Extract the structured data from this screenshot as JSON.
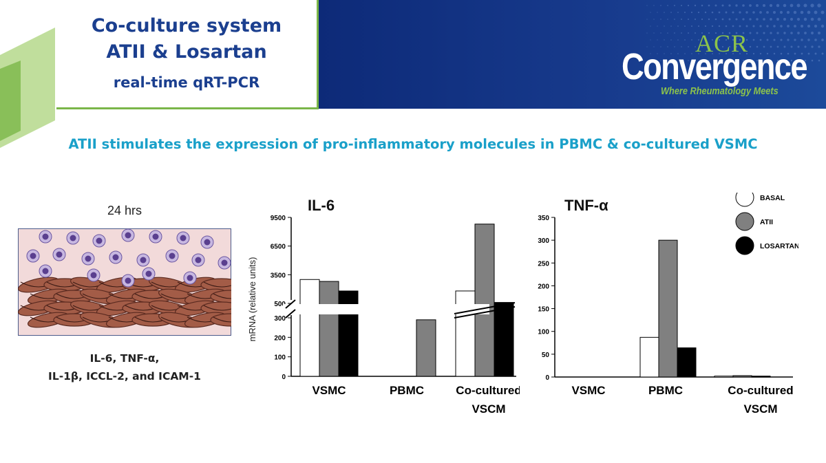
{
  "header": {
    "title_line1": "Co-culture system",
    "title_line2": "ATII & Losartan",
    "title_line3": "real-time qRT-PCR",
    "logo_acr": "ACR",
    "logo_main": "Convergence",
    "logo_tagline": "Where Rheumatology Meets"
  },
  "subtitle": "ATII stimulates the expression  of pro-inflammatory molecules in PBMC & co-cultured VSMC",
  "illustration": {
    "time_label": "24 hrs",
    "cytokines_line1": "IL-6, TNF-α,",
    "cytokines_line2": "IL-1β, ICCL-2, and ICAM-1"
  },
  "colors": {
    "basal": "#ffffff",
    "atii": "#808080",
    "losartan": "#000000",
    "title_blue": "#1b3f8f",
    "subtitle_cyan": "#1aa0c9",
    "accent_green": "#7ab648"
  },
  "legend": [
    "BASAL",
    "ATII",
    "LOSARTAN"
  ],
  "chart_data": [
    {
      "type": "bar",
      "title": "IL-6",
      "ylabel": "mRNA (relative units)",
      "categories": [
        "VSMC",
        "PBMC",
        "Co-cultured VSCM"
      ],
      "series": [
        {
          "name": "BASAL",
          "values": [
            3000,
            0,
            1800
          ]
        },
        {
          "name": "ATII",
          "values": [
            2800,
            290,
            8800
          ]
        },
        {
          "name": "LOSARTAN",
          "values": [
            1800,
            0,
            600
          ]
        }
      ],
      "broken_axis": true,
      "upper_ticks": [
        500,
        3500,
        6500,
        9500
      ],
      "lower_ticks": [
        0,
        100,
        200,
        300
      ],
      "ylim": [
        0,
        9500
      ]
    },
    {
      "type": "bar",
      "title": "TNF-α",
      "categories": [
        "VSMC",
        "PBMC",
        "Co-cultured VSCM"
      ],
      "series": [
        {
          "name": "BASAL",
          "values": [
            0,
            87,
            2
          ]
        },
        {
          "name": "ATII",
          "values": [
            0,
            300,
            3
          ]
        },
        {
          "name": "LOSARTAN",
          "values": [
            0,
            64,
            2
          ]
        }
      ],
      "ticks": [
        0,
        50,
        100,
        150,
        200,
        250,
        300,
        350
      ],
      "ylim": [
        0,
        350
      ],
      "legend_position": "top-right"
    }
  ]
}
